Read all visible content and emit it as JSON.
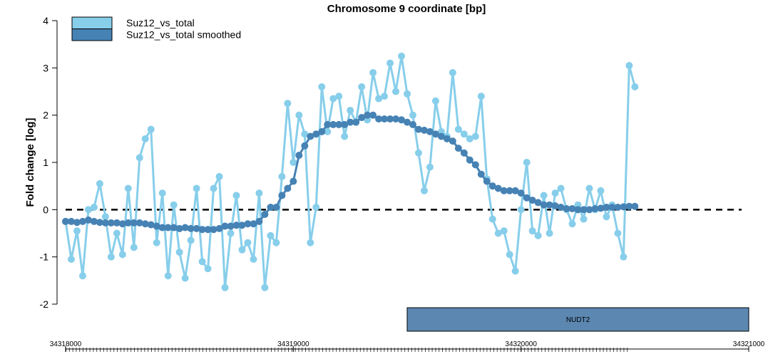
{
  "chart_data": {
    "type": "line",
    "title": "Chromosome 9 coordinate [bp]",
    "y_label": "Fold change [log]",
    "x": [
      34318000,
      34318025,
      34318050,
      34318075,
      34318100,
      34318125,
      34318150,
      34318175,
      34318200,
      34318225,
      34318250,
      34318275,
      34318300,
      34318325,
      34318350,
      34318375,
      34318400,
      34318425,
      34318450,
      34318475,
      34318500,
      34318525,
      34318550,
      34318575,
      34318600,
      34318625,
      34318650,
      34318675,
      34318700,
      34318725,
      34318750,
      34318775,
      34318800,
      34318825,
      34318850,
      34318875,
      34318900,
      34318925,
      34318950,
      34318975,
      34319000,
      34319025,
      34319050,
      34319075,
      34319100,
      34319125,
      34319150,
      34319175,
      34319200,
      34319225,
      34319250,
      34319275,
      34319300,
      34319325,
      34319350,
      34319375,
      34319400,
      34319425,
      34319450,
      34319475,
      34319500,
      34319525,
      34319550,
      34319575,
      34319600,
      34319625,
      34319650,
      34319675,
      34319700,
      34319725,
      34319750,
      34319775,
      34319800,
      34319825,
      34319850,
      34319875,
      34319900,
      34319925,
      34319950,
      34319975,
      34320000,
      34320025,
      34320050,
      34320075,
      34320100,
      34320125,
      34320150,
      34320175,
      34320200,
      34320225,
      34320250,
      34320275,
      34320300,
      34320325,
      34320350,
      34320375,
      34320400,
      34320425,
      34320450,
      34320475,
      34320500
    ],
    "series": [
      {
        "name": "Suz12_vs_total",
        "color": "#87ceeb",
        "values": [
          -0.25,
          -1.05,
          -0.45,
          -1.4,
          0.0,
          0.05,
          0.55,
          -0.15,
          -1.0,
          -0.5,
          -0.95,
          0.45,
          -0.8,
          1.1,
          1.5,
          1.7,
          -0.7,
          0.35,
          -1.4,
          0.1,
          -0.9,
          -1.45,
          -0.65,
          0.45,
          -1.1,
          -1.25,
          0.45,
          0.7,
          -1.65,
          -0.5,
          0.3,
          -0.85,
          -0.7,
          -1.05,
          0.35,
          -1.65,
          -0.55,
          -0.7,
          0.7,
          2.25,
          1.0,
          2.0,
          1.6,
          -0.7,
          0.05,
          2.6,
          1.65,
          2.35,
          2.4,
          1.55,
          2.1,
          1.85,
          2.6,
          1.9,
          2.9,
          2.35,
          2.4,
          3.1,
          2.5,
          3.25,
          2.45,
          2.0,
          1.2,
          0.4,
          0.9,
          2.3,
          1.65,
          1.55,
          2.9,
          1.7,
          1.6,
          1.5,
          1.55,
          2.4,
          0.65,
          -0.2,
          -0.5,
          -0.45,
          -0.95,
          -1.3,
          0.0,
          1.0,
          -0.45,
          -0.55,
          0.3,
          -0.5,
          0.35,
          0.45,
          0.0,
          -0.3,
          0.1,
          -0.2,
          0.45,
          0.0,
          0.4,
          -0.15,
          0.1,
          -0.5,
          -1.0,
          3.05,
          2.6
        ]
      },
      {
        "name": "Suz12_vs_total smoothed",
        "color": "#4682b4",
        "values": [
          -0.25,
          -0.25,
          -0.27,
          -0.25,
          -0.22,
          -0.25,
          -0.27,
          -0.28,
          -0.28,
          -0.28,
          -0.3,
          -0.28,
          -0.28,
          -0.28,
          -0.3,
          -0.32,
          -0.35,
          -0.38,
          -0.38,
          -0.38,
          -0.4,
          -0.38,
          -0.4,
          -0.4,
          -0.42,
          -0.42,
          -0.42,
          -0.4,
          -0.35,
          -0.35,
          -0.33,
          -0.33,
          -0.3,
          -0.3,
          -0.25,
          -0.1,
          0.05,
          0.05,
          0.3,
          0.45,
          0.6,
          1.15,
          1.35,
          1.55,
          1.6,
          1.65,
          1.8,
          1.8,
          1.8,
          1.8,
          1.85,
          1.85,
          1.95,
          2.0,
          2.0,
          1.92,
          1.92,
          1.92,
          1.92,
          1.9,
          1.85,
          1.8,
          1.7,
          1.68,
          1.65,
          1.6,
          1.55,
          1.5,
          1.45,
          1.3,
          1.2,
          1.05,
          0.95,
          0.75,
          0.6,
          0.5,
          0.45,
          0.4,
          0.4,
          0.4,
          0.35,
          0.25,
          0.2,
          0.15,
          0.1,
          0.1,
          0.08,
          0.05,
          0.02,
          0.02,
          0.0,
          0.0,
          0.0,
          0.02,
          0.03,
          0.05,
          0.05,
          0.05,
          0.06,
          0.07,
          0.07
        ]
      }
    ],
    "xlim": [
      34318000,
      34321000
    ],
    "xticks": [
      34318000,
      34319000,
      34320000,
      34321000
    ],
    "ylim": [
      -2,
      4
    ],
    "yticks": [
      -2,
      -1,
      0,
      1,
      2,
      3,
      4
    ],
    "reference_line": 0,
    "gene": {
      "label": "NUDT2",
      "start": 34319500,
      "end": 34321000,
      "color": "#5b87b0"
    },
    "legend": "top-left"
  }
}
